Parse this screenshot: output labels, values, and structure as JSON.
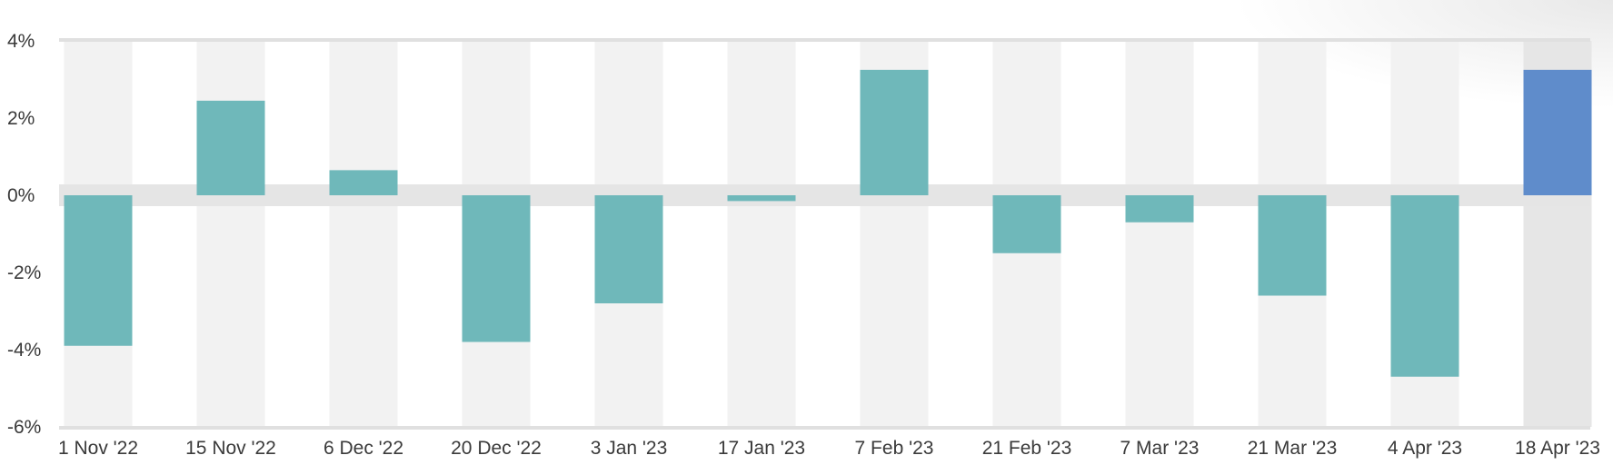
{
  "chart_data": {
    "type": "bar",
    "categories": [
      "1 Nov '22",
      "15 Nov '22",
      "6 Dec '22",
      "20 Dec '22",
      "3 Jan '23",
      "17 Jan '23",
      "7 Feb '23",
      "21 Feb '23",
      "7 Mar '23",
      "21 Mar '23",
      "4 Apr '23",
      "18 Apr '23"
    ],
    "values": [
      -3.9,
      2.45,
      0.65,
      -3.8,
      -2.8,
      -0.15,
      3.25,
      -1.5,
      -0.7,
      -2.6,
      -4.7,
      3.25
    ],
    "ylim": [
      -6,
      4
    ],
    "yticks": [
      4,
      2,
      0,
      -2,
      -4,
      -6
    ],
    "ytick_labels": [
      "4%",
      "2%",
      "0%",
      "-2%",
      "-4%",
      "-6%"
    ],
    "title": "",
    "xlabel": "",
    "ylabel": "",
    "grid": false,
    "colors": {
      "bar": "#6fb8ba",
      "highlight_bar": "#5f8ccb",
      "column_band": "#f2f2f2",
      "highlight_band": "#e6e6e6",
      "zero_band": "#e5e5e5",
      "axis_line": "#e0e0e0"
    },
    "highlight_index": 11
  }
}
